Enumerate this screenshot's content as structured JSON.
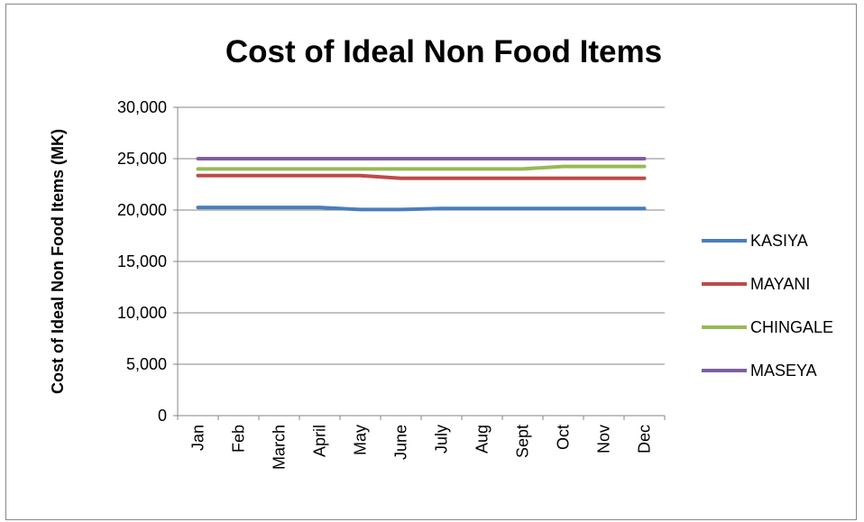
{
  "chart_data": {
    "type": "line",
    "title": "Cost of Ideal Non Food Items",
    "xlabel": "",
    "ylabel": "Cost of Ideal Non Food Items (MK)",
    "categories": [
      "Jan",
      "Feb",
      "March",
      "April",
      "May",
      "June",
      "July",
      "Aug",
      "Sept",
      "Oct",
      "Nov",
      "Dec"
    ],
    "y_ticks": [
      "0",
      "5,000",
      "10,000",
      "15,000",
      "20,000",
      "25,000",
      "30,000"
    ],
    "ylim": [
      0,
      30000
    ],
    "grid": "horizontal",
    "legend_position": "right",
    "series": [
      {
        "name": "KASIYA",
        "color": "#4a7ebb",
        "values": [
          20250,
          20250,
          20250,
          20250,
          20050,
          20050,
          20150,
          20150,
          20150,
          20150,
          20150,
          20150
        ]
      },
      {
        "name": "MAYANI",
        "color": "#be4b48",
        "values": [
          23350,
          23350,
          23350,
          23350,
          23350,
          23100,
          23100,
          23100,
          23100,
          23100,
          23100,
          23100
        ]
      },
      {
        "name": "CHINGALE",
        "color": "#98b954",
        "values": [
          24000,
          24000,
          24000,
          24000,
          24000,
          24000,
          24000,
          24000,
          24000,
          24250,
          24250,
          24250
        ]
      },
      {
        "name": "MASEYA",
        "color": "#7d5fa0",
        "values": [
          25000,
          25000,
          25000,
          25000,
          25000,
          25000,
          25000,
          25000,
          25000,
          25000,
          25000,
          25000
        ]
      }
    ]
  }
}
